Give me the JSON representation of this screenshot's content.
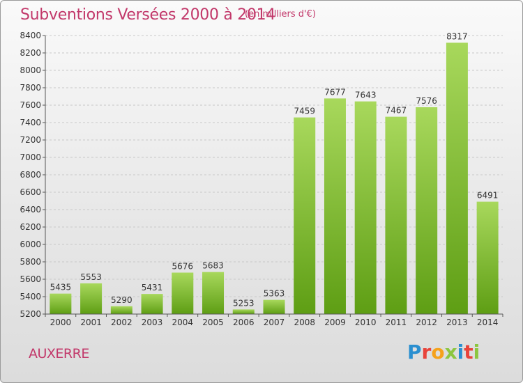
{
  "header": {
    "title": "Subventions Versées 2000 à 2014",
    "subtitle": "(en milliers d'€)"
  },
  "footer": {
    "city": "AUXERRE",
    "logo": "Proxiti",
    "logo_colors": [
      "#2a8fd0",
      "#e8433a",
      "#f5a21b",
      "#8cc63f",
      "#2a8fd0",
      "#e8433a",
      "#8cc63f"
    ]
  },
  "colors": {
    "title": "#c2386a",
    "bar_light": "#a8d85c",
    "bar_dark": "#5e9e14"
  },
  "chart_data": {
    "type": "bar",
    "categories": [
      "2000",
      "2001",
      "2002",
      "2003",
      "2004",
      "2005",
      "2006",
      "2007",
      "2008",
      "2009",
      "2010",
      "2011",
      "2012",
      "2013",
      "2014"
    ],
    "values": [
      5435,
      5553,
      5290,
      5431,
      5676,
      5683,
      5253,
      5363,
      7459,
      7677,
      7643,
      7467,
      7576,
      8317,
      6491
    ],
    "ylim": [
      5200,
      8400
    ],
    "yticks": [
      5200,
      5400,
      5600,
      5800,
      6000,
      6200,
      6400,
      6600,
      6800,
      7000,
      7200,
      7400,
      7600,
      7800,
      8000,
      8200,
      8400
    ],
    "grid": true
  }
}
